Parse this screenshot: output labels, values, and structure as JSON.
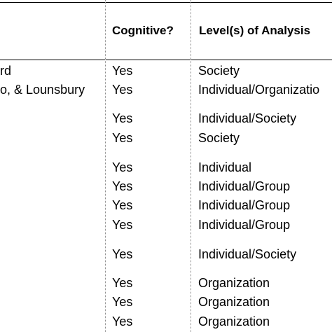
{
  "table": {
    "headers": {
      "cognitive": "Cognitive?",
      "levels": "Level(s) of Analysis"
    },
    "rows": [
      {
        "name": "rd",
        "cognitive": "Yes",
        "level": "Society"
      },
      {
        "name": "o, & Lounsbury",
        "cognitive": "Yes",
        "level": "Individual/Organizatio"
      },
      {
        "name": "",
        "cognitive": "Yes",
        "level": "Individual/Society"
      },
      {
        "name": "",
        "cognitive": "Yes",
        "level": "Society"
      },
      {
        "name": "",
        "cognitive": "Yes",
        "level": "Individual"
      },
      {
        "name": "",
        "cognitive": "Yes",
        "level": "Individual/Group"
      },
      {
        "name": "",
        "cognitive": "Yes",
        "level": "Individual/Group"
      },
      {
        "name": "",
        "cognitive": "Yes",
        "level": "Individual/Group"
      },
      {
        "name": "",
        "cognitive": "Yes",
        "level": "Individual/Society"
      },
      {
        "name": "",
        "cognitive": "Yes",
        "level": "Organization"
      },
      {
        "name": "",
        "cognitive": "Yes",
        "level": "Organization"
      },
      {
        "name": "",
        "cognitive": "Yes",
        "level": "Organization"
      }
    ]
  }
}
